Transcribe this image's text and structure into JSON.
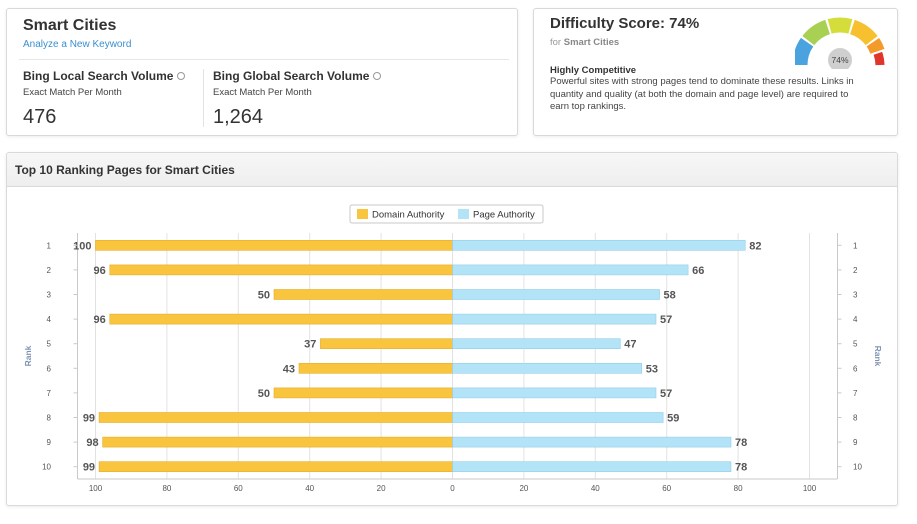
{
  "keyword": {
    "title": "Smart Cities",
    "link": "Analyze a New Keyword",
    "local": {
      "title": "Bing Local Search Volume",
      "sub": "Exact Match Per Month",
      "value": "476"
    },
    "global": {
      "title": "Bing Global Search Volume",
      "sub": "Exact Match Per Month",
      "value": "1,264"
    }
  },
  "difficulty": {
    "title": "Difficulty Score: 74%",
    "for_prefix": "for",
    "for_keyword": "Smart Cities",
    "level": "Highly Competitive",
    "description": "Powerful sites with strong pages tend to dominate these results. Links in quantity and quality (at both the domain and page level) are required to earn top rankings.",
    "gauge_label": "74%",
    "gauge_value": 74
  },
  "chart_panel": {
    "title": "Top 10 Ranking Pages for Smart Cities"
  },
  "chart_data": {
    "type": "bar",
    "orientation": "horizontal-mirrored",
    "categories": [
      "1",
      "2",
      "3",
      "4",
      "5",
      "6",
      "7",
      "8",
      "9",
      "10"
    ],
    "series": [
      {
        "name": "Domain Authority",
        "color": "#f9c43e",
        "values": [
          100,
          96,
          50,
          96,
          37,
          43,
          50,
          99,
          98,
          99
        ]
      },
      {
        "name": "Page Authority",
        "color": "#b3e3f7",
        "values": [
          82,
          66,
          58,
          57,
          47,
          53,
          57,
          59,
          78,
          78
        ]
      }
    ],
    "left_ticks": [
      "100",
      "80",
      "60",
      "40",
      "20",
      "0"
    ],
    "right_ticks": [
      "20",
      "40",
      "60",
      "80",
      "100"
    ],
    "ylabel_left": "Rank",
    "ylabel_right": "Rank",
    "xlim": [
      0,
      100
    ],
    "legend": "top-center",
    "grid": true
  }
}
